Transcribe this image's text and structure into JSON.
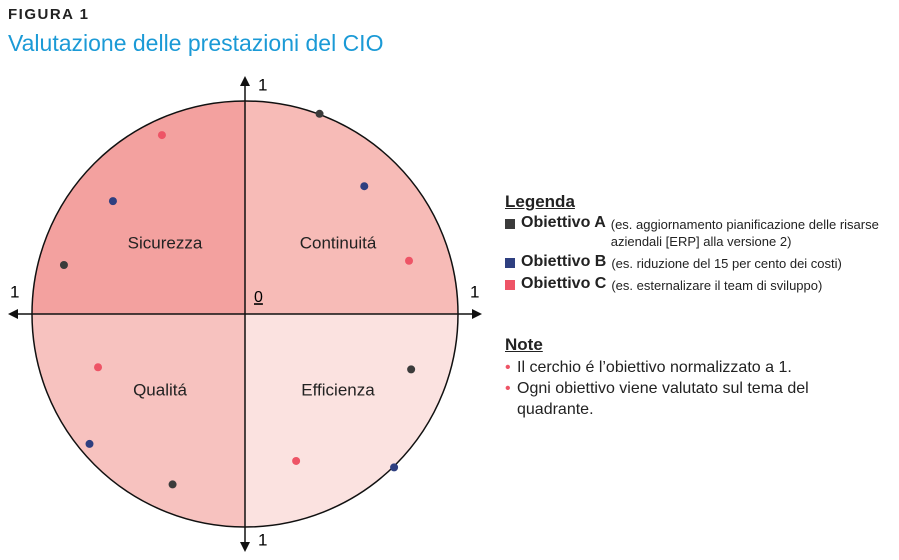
{
  "header": {
    "label": "FIGURA 1",
    "title": "Valutazione delle prestazioni del CIO"
  },
  "diagram": {
    "axis_labels": {
      "top": "1",
      "bottom": "1",
      "left": "1",
      "right": "1",
      "origin": "0"
    },
    "xlim": [
      -1,
      1
    ],
    "ylim": [
      -1,
      1
    ],
    "quadrants": [
      {
        "label": "Sicurezza",
        "color": "#f3a19f"
      },
      {
        "label": "Continuitá",
        "color": "#f7bbb7"
      },
      {
        "label": "Qualitá",
        "color": "#f7c2bf"
      },
      {
        "label": "Efficienza",
        "color": "#fbe2e0"
      }
    ],
    "series": [
      {
        "name": "Obiettivo A",
        "description": "(es. aggiornamento pianificazione delle risarse aziendali [ERP] alla versione 2)",
        "color": "#3b3b3b",
        "x": [
          -0.85,
          0.35,
          -0.34,
          0.78
        ],
        "y": [
          0.23,
          0.94,
          -0.8,
          -0.26
        ]
      },
      {
        "name": "Obiettivo B",
        "description": "(es. riduzione del 15 per cento dei costi)",
        "color": "#2e3f80",
        "x": [
          -0.62,
          0.56,
          -0.73,
          0.7
        ],
        "y": [
          0.53,
          0.6,
          -0.61,
          -0.72
        ]
      },
      {
        "name": "Obiettivo C",
        "description": "(es. esternalizare il team di sviluppo)",
        "color": "#ee5466",
        "x": [
          -0.39,
          0.77,
          -0.69,
          0.24
        ],
        "y": [
          0.84,
          0.25,
          -0.25,
          -0.69
        ]
      }
    ]
  },
  "legend": {
    "title": "Legenda"
  },
  "notes": {
    "title": "Note",
    "items": [
      "Il cerchio é l’obiettivo normalizzato a 1.",
      "Ogni obiettivo viene valutato sul tema del quadrante."
    ]
  }
}
